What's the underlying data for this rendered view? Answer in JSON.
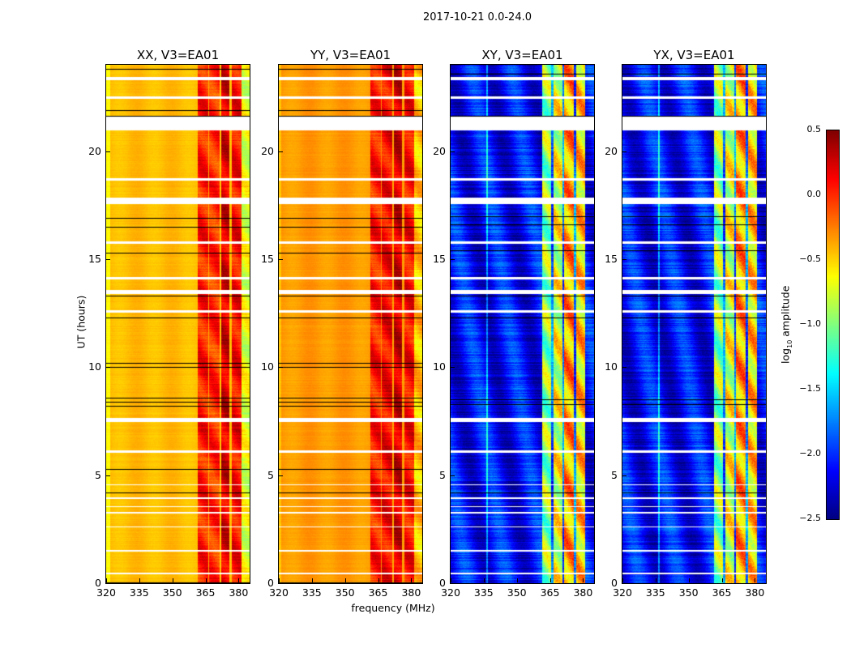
{
  "suptitle": "2017-10-21 0.0-24.0",
  "chart_data": {
    "type": "heatmap",
    "xlabel": "frequency (MHz)",
    "ylabel": "UT (hours)",
    "xlim": [
      320,
      385
    ],
    "ylim": [
      0,
      24
    ],
    "xticks": [
      "320",
      "335",
      "350",
      "365",
      "380"
    ],
    "xtick_values": [
      320,
      335,
      350,
      365,
      380
    ],
    "yticks": [
      "0",
      "5",
      "10",
      "15",
      "20"
    ],
    "ytick_values": [
      0,
      5,
      10,
      15,
      20
    ],
    "colorbar": {
      "label_main": "log",
      "label_sub": "10",
      "label_rest": " amplitude",
      "range": [
        -2.5,
        0.5
      ],
      "colormap": "jet",
      "ticks": [
        "0.5",
        "0.0",
        "−0.5",
        "−1.0",
        "−1.5",
        "−2.0",
        "−2.5"
      ],
      "tick_values": [
        0.5,
        0.0,
        -0.5,
        -1.0,
        -1.5,
        -2.0,
        -2.5
      ]
    },
    "flagged_rows_hours": [
      [
        23.3,
        23.45
      ],
      [
        22.45,
        22.55
      ],
      [
        21.0,
        21.6
      ],
      [
        18.65,
        18.75
      ],
      [
        17.55,
        17.85
      ],
      [
        15.75,
        15.85
      ],
      [
        14.1,
        14.2
      ],
      [
        13.4,
        13.6
      ],
      [
        12.55,
        12.65
      ],
      [
        7.5,
        7.65
      ],
      [
        6.05,
        6.15
      ],
      [
        4.55,
        4.6
      ],
      [
        3.9,
        4.0
      ],
      [
        3.55,
        3.6
      ],
      [
        3.25,
        3.3
      ],
      [
        2.6,
        2.65
      ],
      [
        1.5,
        1.55
      ],
      [
        0.45,
        0.5
      ]
    ],
    "panels": [
      {
        "title": "XX, V3=EA01",
        "type": "parallel",
        "base": -0.45,
        "bands": [
          [
            320,
            321.5,
            -0.65
          ],
          [
            361.3,
            366,
            0.05
          ],
          [
            366.6,
            371.3,
            0.0
          ],
          [
            371.8,
            375.8,
            0.22
          ],
          [
            376.7,
            381,
            0.1
          ],
          [
            381,
            385,
            -0.7
          ]
        ],
        "black_rows_hours": [
          23.8,
          23.45,
          21.9,
          21.65,
          16.9,
          16.5,
          15.3,
          13.3,
          12.3,
          10.2,
          10.0,
          8.6,
          8.4,
          8.2,
          5.3,
          4.2,
          0.05
        ]
      },
      {
        "title": "YY, V3=EA01",
        "type": "parallel",
        "base": -0.35,
        "bands": [
          [
            320,
            321,
            -0.5
          ],
          [
            361.3,
            366,
            0.05
          ],
          [
            366.6,
            371.3,
            0.12
          ],
          [
            371.8,
            375.8,
            0.25
          ],
          [
            376.7,
            381,
            0.1
          ],
          [
            381,
            385,
            -0.45
          ]
        ],
        "black_rows_hours": [
          23.8,
          23.45,
          21.9,
          21.65,
          16.9,
          16.5,
          15.3,
          13.3,
          12.3,
          10.2,
          10.0,
          8.6,
          8.4,
          8.2,
          5.3,
          4.2,
          0.05
        ]
      },
      {
        "title": "XY, V3=EA01",
        "type": "cross",
        "base": -2.2,
        "bands": [
          [
            336,
            336.6,
            -1.6
          ],
          [
            361.3,
            365.5,
            -0.9
          ],
          [
            365.5,
            366.5,
            -1.9
          ],
          [
            366.5,
            370.6,
            -0.65
          ],
          [
            370.6,
            371.4,
            -1.9
          ],
          [
            371.4,
            375.7,
            -0.3
          ],
          [
            375.7,
            376.6,
            -1.9
          ],
          [
            376.6,
            380.8,
            -0.45
          ]
        ],
        "black_rows_hours": [
          23.6,
          21.65,
          17.0,
          16.6,
          15.4,
          13.3,
          12.3,
          8.5,
          8.3,
          4.2
        ]
      },
      {
        "title": "YX, V3=EA01",
        "type": "cross",
        "base": -2.2,
        "bands": [
          [
            336,
            336.6,
            -1.6
          ],
          [
            361.3,
            365.5,
            -0.9
          ],
          [
            365.5,
            366.5,
            -1.9
          ],
          [
            366.5,
            370.6,
            -0.65
          ],
          [
            370.6,
            371.4,
            -1.9
          ],
          [
            371.4,
            375.7,
            -0.3
          ],
          [
            375.7,
            376.6,
            -1.9
          ],
          [
            376.6,
            380.8,
            -0.45
          ]
        ],
        "black_rows_hours": [
          23.6,
          21.65,
          17.0,
          16.6,
          15.4,
          13.3,
          12.3,
          8.5,
          8.3,
          4.2
        ]
      }
    ]
  }
}
